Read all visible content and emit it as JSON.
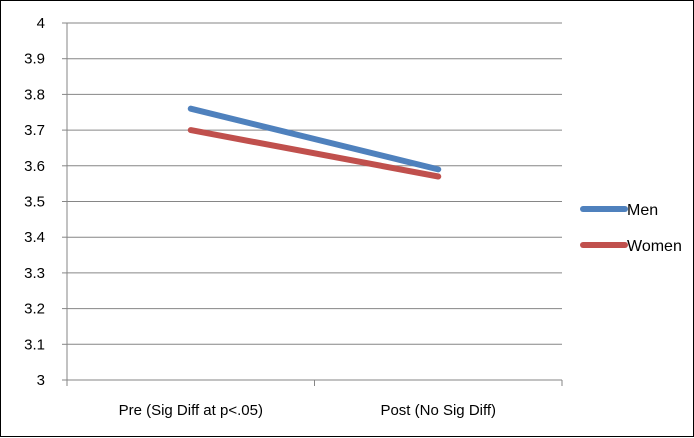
{
  "chart_data": {
    "type": "line",
    "title": "",
    "xlabel": "",
    "ylabel": "",
    "categories": [
      "Pre (Sig Diff at p<.05)",
      "Post (No Sig Diff)"
    ],
    "ylim": [
      3,
      4
    ],
    "ytick_step": 0.1,
    "yticks": [
      "3",
      "3.1",
      "3.2",
      "3.3",
      "3.4",
      "3.5",
      "3.6",
      "3.7",
      "3.8",
      "3.9",
      "4"
    ],
    "grid": true,
    "legend_position": "right",
    "series": [
      {
        "name": "Men",
        "values": [
          3.76,
          3.59
        ],
        "color": "#4F81BD"
      },
      {
        "name": "Women",
        "values": [
          3.7,
          3.57
        ],
        "color": "#C0504D"
      }
    ]
  }
}
